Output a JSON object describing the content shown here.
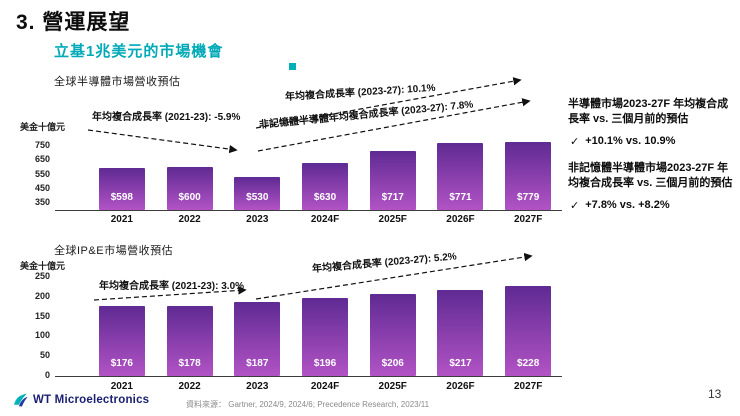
{
  "slide": {
    "title": "3. 營運展望",
    "subtitle": "立基1兆美元的市場機會",
    "page_number": "13",
    "source_label": "資料來源：",
    "source_text": "Gartner, 2024/9, 2024/6; Precedence Research, 2023/11",
    "logo_text": "WT Microelectronics"
  },
  "right_panel": {
    "block1_title": "半導體市場2023-27F 年均複合成長率 vs. 三個月前的預估",
    "block1_check": "✓",
    "block1_value": "+10.1% vs. 10.9%",
    "block2_title": "非記憶體半導體市場2023-27F 年均複合成長率 vs. 三個月前的預估",
    "block2_check": "✓",
    "block2_value": "+7.8% vs. +8.2%"
  },
  "colors": {
    "subtitle_teal": "#00a9b7",
    "accent_square": "#00b0b9",
    "bar_gradient_top": "#5f2a93",
    "bar_gradient_bottom": "#b253c5"
  },
  "chart_data": [
    {
      "type": "bar",
      "title": "全球半導體市場營收預估",
      "unit_label": "美金十億元",
      "categories": [
        "2021",
        "2022",
        "2023",
        "2024F",
        "2025F",
        "2026F",
        "2027F"
      ],
      "values": [
        598,
        600,
        530,
        630,
        717,
        771,
        779
      ],
      "value_labels": [
        "$598",
        "$600",
        "$530",
        "$630",
        "$717",
        "$771",
        "$779"
      ],
      "ylim": [
        300,
        800
      ],
      "yticks": [
        350,
        450,
        550,
        650,
        750
      ],
      "bar_color_top": "#5f2a93",
      "bar_color_bottom": "#b253c5",
      "annotations": [
        "年均複合成長率 (2021-23): -5.9%",
        "年均複合成長率 (2023-27): 10.1%",
        "非記憶體半導體年均複合成長率 (2023-27): 7.8%"
      ]
    },
    {
      "type": "bar",
      "title": "全球IP&E市場營收預估",
      "unit_label": "美金十億元",
      "categories": [
        "2021",
        "2022",
        "2023",
        "2024F",
        "2025F",
        "2026F",
        "2027F"
      ],
      "values": [
        176,
        178,
        187,
        196,
        206,
        217,
        228
      ],
      "value_labels": [
        "$176",
        "$178",
        "$187",
        "$196",
        "$206",
        "$217",
        "$228"
      ],
      "ylim": [
        0,
        250
      ],
      "yticks": [
        0,
        50,
        100,
        150,
        200,
        250
      ],
      "bar_color_top": "#5f2a93",
      "bar_color_bottom": "#b253c5",
      "annotations": [
        "年均複合成長率 (2021-23): 3.0%",
        "年均複合成長率 (2023-27): 5.2%"
      ]
    }
  ]
}
